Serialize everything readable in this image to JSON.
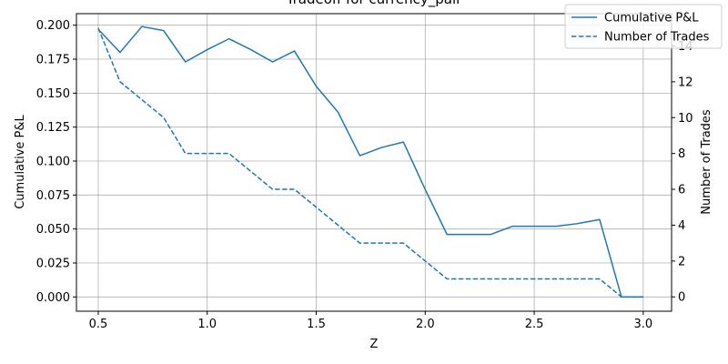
{
  "chart_data": {
    "type": "line",
    "title": "Tradeoff for currency_pair",
    "xlabel": "Z",
    "ylabel_left": "Cumulative P&L",
    "ylabel_right": "Number of Trades",
    "xlim": [
      0.4,
      3.13
    ],
    "ylim_left": [
      -0.0105,
      0.2085
    ],
    "ylim_right": [
      -0.8,
      15.8
    ],
    "xticks": [
      0.5,
      1.0,
      1.5,
      2.0,
      2.5,
      3.0
    ],
    "xtick_labels": [
      "0.5",
      "1.0",
      "1.5",
      "2.0",
      "2.5",
      "3.0"
    ],
    "yticks_left": [
      0.0,
      0.025,
      0.05,
      0.075,
      0.1,
      0.125,
      0.15,
      0.175,
      0.2
    ],
    "ytick_labels_left": [
      "0.000",
      "0.025",
      "0.050",
      "0.075",
      "0.100",
      "0.125",
      "0.150",
      "0.175",
      "0.200"
    ],
    "yticks_right": [
      0,
      2,
      4,
      6,
      8,
      10,
      12,
      14
    ],
    "ytick_labels_right": [
      "0",
      "2",
      "4",
      "6",
      "8",
      "10",
      "12",
      "14"
    ],
    "grid": true,
    "legend_position": "top-right",
    "color": "#1f77b4",
    "x": [
      0.5,
      0.6,
      0.7,
      0.8,
      0.9,
      1.0,
      1.1,
      1.2,
      1.3,
      1.4,
      1.5,
      1.6,
      1.7,
      1.8,
      1.9,
      2.0,
      2.1,
      2.2,
      2.3,
      2.4,
      2.5,
      2.6,
      2.7,
      2.8,
      2.9,
      3.0
    ],
    "series": [
      {
        "name": "Cumulative P&L",
        "axis": "left",
        "style": "solid",
        "values": [
          0.197,
          0.18,
          0.199,
          0.196,
          0.173,
          0.182,
          0.19,
          0.182,
          0.173,
          0.181,
          0.155,
          0.136,
          0.104,
          0.11,
          0.114,
          0.079,
          0.046,
          0.046,
          0.046,
          0.052,
          0.052,
          0.052,
          0.054,
          0.057,
          0.0,
          0.0
        ]
      },
      {
        "name": "Number of Trades",
        "axis": "right",
        "style": "dashed",
        "values": [
          15,
          12,
          11,
          10,
          8,
          8,
          8,
          7,
          6,
          6,
          5,
          4,
          3,
          3,
          3,
          2,
          1,
          1,
          1,
          1,
          1,
          1,
          1,
          1,
          0,
          0
        ]
      }
    ]
  }
}
